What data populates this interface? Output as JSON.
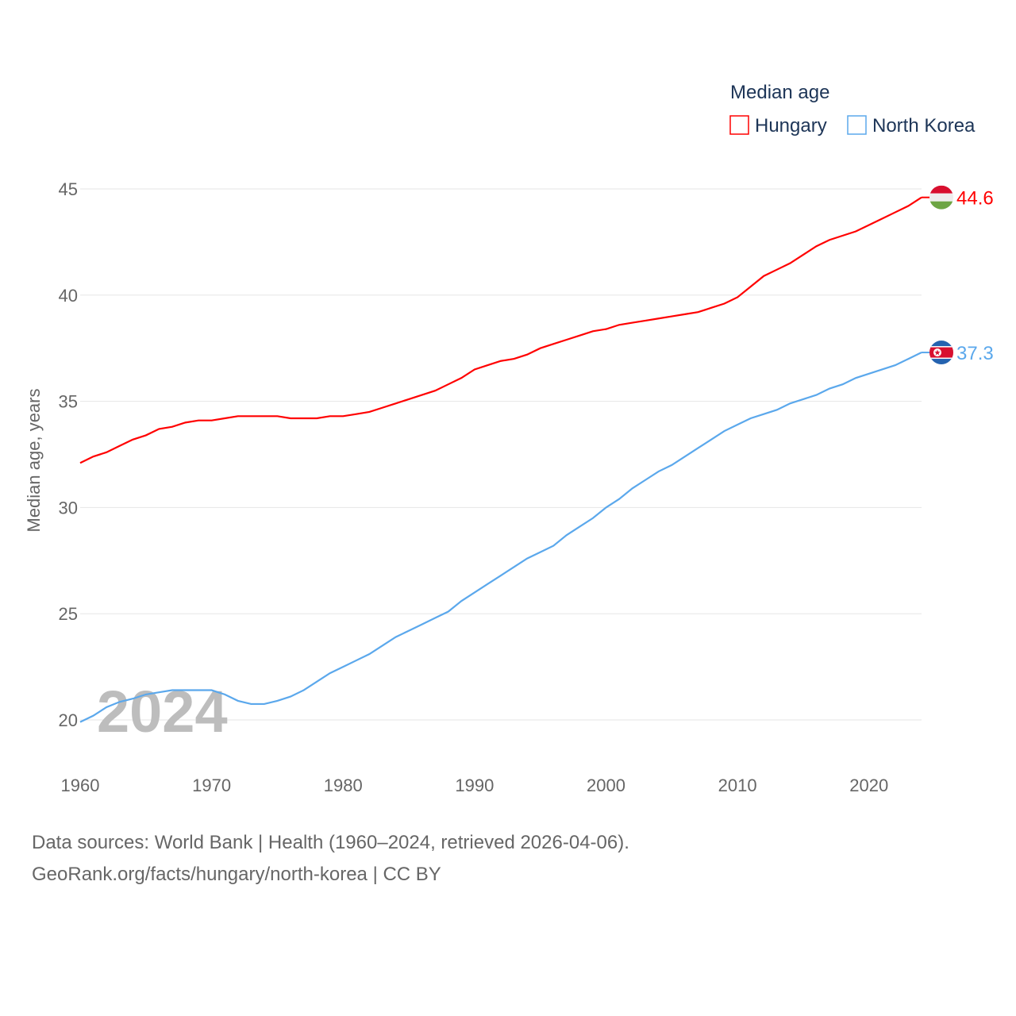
{
  "chart_data": {
    "type": "line",
    "ylabel": "Median age, years",
    "xlabel": "",
    "legend_title": "Median age",
    "legend_position": "top-right",
    "watermark_year": "2024",
    "xlim": [
      1960,
      2024
    ],
    "ylim": [
      18,
      46
    ],
    "x_ticks": [
      "1960",
      "1970",
      "1980",
      "1990",
      "2000",
      "2010",
      "2020"
    ],
    "y_ticks": [
      "20",
      "25",
      "30",
      "35",
      "40",
      "45"
    ],
    "grid": true,
    "x": [
      1960,
      1961,
      1962,
      1963,
      1964,
      1965,
      1966,
      1967,
      1968,
      1969,
      1970,
      1971,
      1972,
      1973,
      1974,
      1975,
      1976,
      1977,
      1978,
      1979,
      1980,
      1981,
      1982,
      1983,
      1984,
      1985,
      1986,
      1987,
      1988,
      1989,
      1990,
      1991,
      1992,
      1993,
      1994,
      1995,
      1996,
      1997,
      1998,
      1999,
      2000,
      2001,
      2002,
      2003,
      2004,
      2005,
      2006,
      2007,
      2008,
      2009,
      2010,
      2011,
      2012,
      2013,
      2014,
      2015,
      2016,
      2017,
      2018,
      2019,
      2020,
      2021,
      2022,
      2023,
      2024
    ],
    "series": [
      {
        "name": "Hungary",
        "color": "#ff0000",
        "end_label": "44.6",
        "values": [
          32.1,
          32.4,
          32.6,
          32.9,
          33.2,
          33.4,
          33.7,
          33.8,
          34.0,
          34.1,
          34.1,
          34.2,
          34.3,
          34.3,
          34.3,
          34.3,
          34.2,
          34.2,
          34.2,
          34.3,
          34.3,
          34.4,
          34.5,
          34.7,
          34.9,
          35.1,
          35.3,
          35.5,
          35.8,
          36.1,
          36.5,
          36.7,
          36.9,
          37.0,
          37.2,
          37.5,
          37.7,
          37.9,
          38.1,
          38.3,
          38.4,
          38.6,
          38.7,
          38.8,
          38.9,
          39.0,
          39.1,
          39.2,
          39.4,
          39.6,
          39.9,
          40.4,
          40.9,
          41.2,
          41.5,
          41.9,
          42.3,
          42.6,
          42.8,
          43.0,
          43.3,
          43.6,
          43.9,
          44.2,
          44.6
        ]
      },
      {
        "name": "North Korea",
        "color": "#5ba8ec",
        "end_label": "37.3",
        "values": [
          19.9,
          20.2,
          20.6,
          20.85,
          21.0,
          21.2,
          21.3,
          21.4,
          21.4,
          21.4,
          21.4,
          21.2,
          20.9,
          20.75,
          20.75,
          20.9,
          21.1,
          21.4,
          21.8,
          22.2,
          22.5,
          22.8,
          23.1,
          23.5,
          23.9,
          24.2,
          24.5,
          24.8,
          25.1,
          25.6,
          26.0,
          26.4,
          26.8,
          27.2,
          27.6,
          27.9,
          28.2,
          28.7,
          29.1,
          29.5,
          30.0,
          30.4,
          30.9,
          31.3,
          31.7,
          32.0,
          32.4,
          32.8,
          33.2,
          33.6,
          33.9,
          34.2,
          34.4,
          34.6,
          34.9,
          35.1,
          35.3,
          35.6,
          35.8,
          36.1,
          36.3,
          36.5,
          36.7,
          37.0,
          37.3
        ]
      }
    ]
  },
  "footer": {
    "line1": "Data sources: World Bank | Health (1960–2024, retrieved 2026-04-06).",
    "line2": "GeoRank.org/facts/hungary/north-korea | CC BY"
  }
}
